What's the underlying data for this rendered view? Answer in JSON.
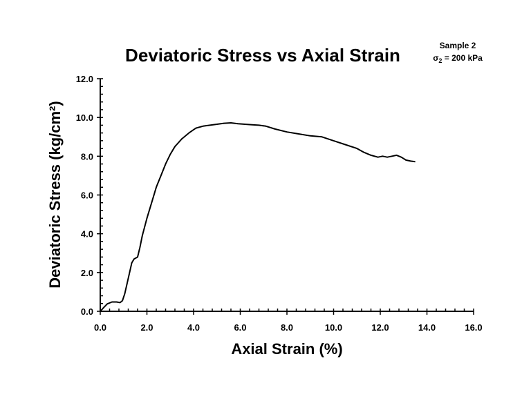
{
  "chart_data": {
    "type": "line",
    "title": "Deviatoric Stress vs Axial Strain",
    "xlabel": "Axial Strain (%)",
    "ylabel": "Deviatoric Stress (kg/cm²)",
    "annotation": {
      "line1": "Sample 2",
      "line2_symbol": "σ",
      "line2_sub": "2",
      "line2_rest": " = 200 kPa"
    },
    "xlim": [
      0,
      16
    ],
    "ylim": [
      0,
      12
    ],
    "x_ticks": [
      "0.0",
      "2.0",
      "4.0",
      "6.0",
      "8.0",
      "10.0",
      "12.0",
      "14.0",
      "16.0"
    ],
    "y_ticks": [
      "0.0",
      "2.0",
      "4.0",
      "6.0",
      "8.0",
      "10.0",
      "12.0"
    ],
    "x_tick_values": [
      0,
      2,
      4,
      6,
      8,
      10,
      12,
      14,
      16
    ],
    "y_tick_values": [
      0,
      2,
      4,
      6,
      8,
      10,
      12
    ],
    "grid": false,
    "legend": "none",
    "line_color": "#000000",
    "series": [
      {
        "x": [
          0.0,
          0.15,
          0.3,
          0.5,
          0.7,
          0.85,
          0.95,
          1.05,
          1.2,
          1.35,
          1.45,
          1.6,
          1.7,
          1.8,
          2.0,
          2.2,
          2.4,
          2.6,
          2.8,
          3.0,
          3.2,
          3.5,
          3.8,
          4.1,
          4.4,
          4.7,
          5.0,
          5.3,
          5.6,
          5.9,
          6.2,
          6.5,
          6.8,
          7.1,
          7.5,
          8.0,
          8.5,
          9.0,
          9.5,
          10.0,
          10.5,
          11.0,
          11.3,
          11.6,
          11.9,
          12.1,
          12.3,
          12.5,
          12.7,
          12.9,
          13.1,
          13.3,
          13.5
        ],
        "y": [
          0.0,
          0.2,
          0.38,
          0.48,
          0.48,
          0.45,
          0.55,
          0.9,
          1.7,
          2.5,
          2.7,
          2.8,
          3.3,
          3.9,
          4.8,
          5.6,
          6.4,
          7.0,
          7.6,
          8.1,
          8.5,
          8.9,
          9.2,
          9.45,
          9.55,
          9.6,
          9.65,
          9.7,
          9.72,
          9.68,
          9.65,
          9.62,
          9.6,
          9.55,
          9.4,
          9.25,
          9.15,
          9.05,
          9.0,
          8.8,
          8.6,
          8.4,
          8.2,
          8.05,
          7.95,
          8.0,
          7.95,
          8.0,
          8.05,
          7.95,
          7.8,
          7.75,
          7.72
        ]
      }
    ]
  }
}
